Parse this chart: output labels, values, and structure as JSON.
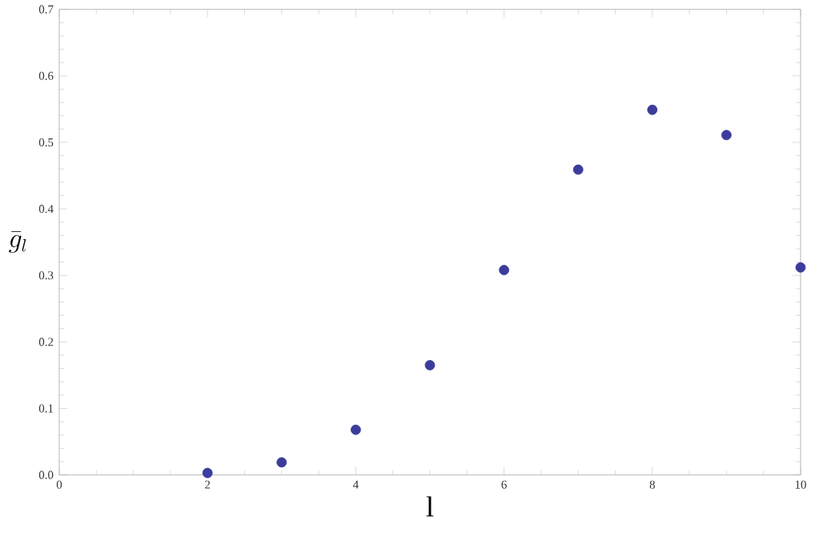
{
  "chart_data": {
    "type": "scatter",
    "xlabel": "l",
    "ylabel": "\\bar{g}_l",
    "x": [
      2,
      3,
      4,
      5,
      6,
      7,
      8,
      9,
      10
    ],
    "values": [
      0.003,
      0.019,
      0.068,
      0.165,
      0.308,
      0.459,
      0.549,
      0.511,
      0.312
    ],
    "color": "#3c3c9c",
    "grid": false,
    "xlim": [
      0,
      10
    ],
    "ylim": [
      0,
      0.7
    ],
    "xticks": [
      0,
      2,
      4,
      6,
      8,
      10
    ],
    "yticks": [
      {
        "value": 0,
        "label": "0.0"
      },
      0.1,
      0.2,
      0.3,
      0.4,
      0.5,
      0.6,
      0.7
    ]
  }
}
